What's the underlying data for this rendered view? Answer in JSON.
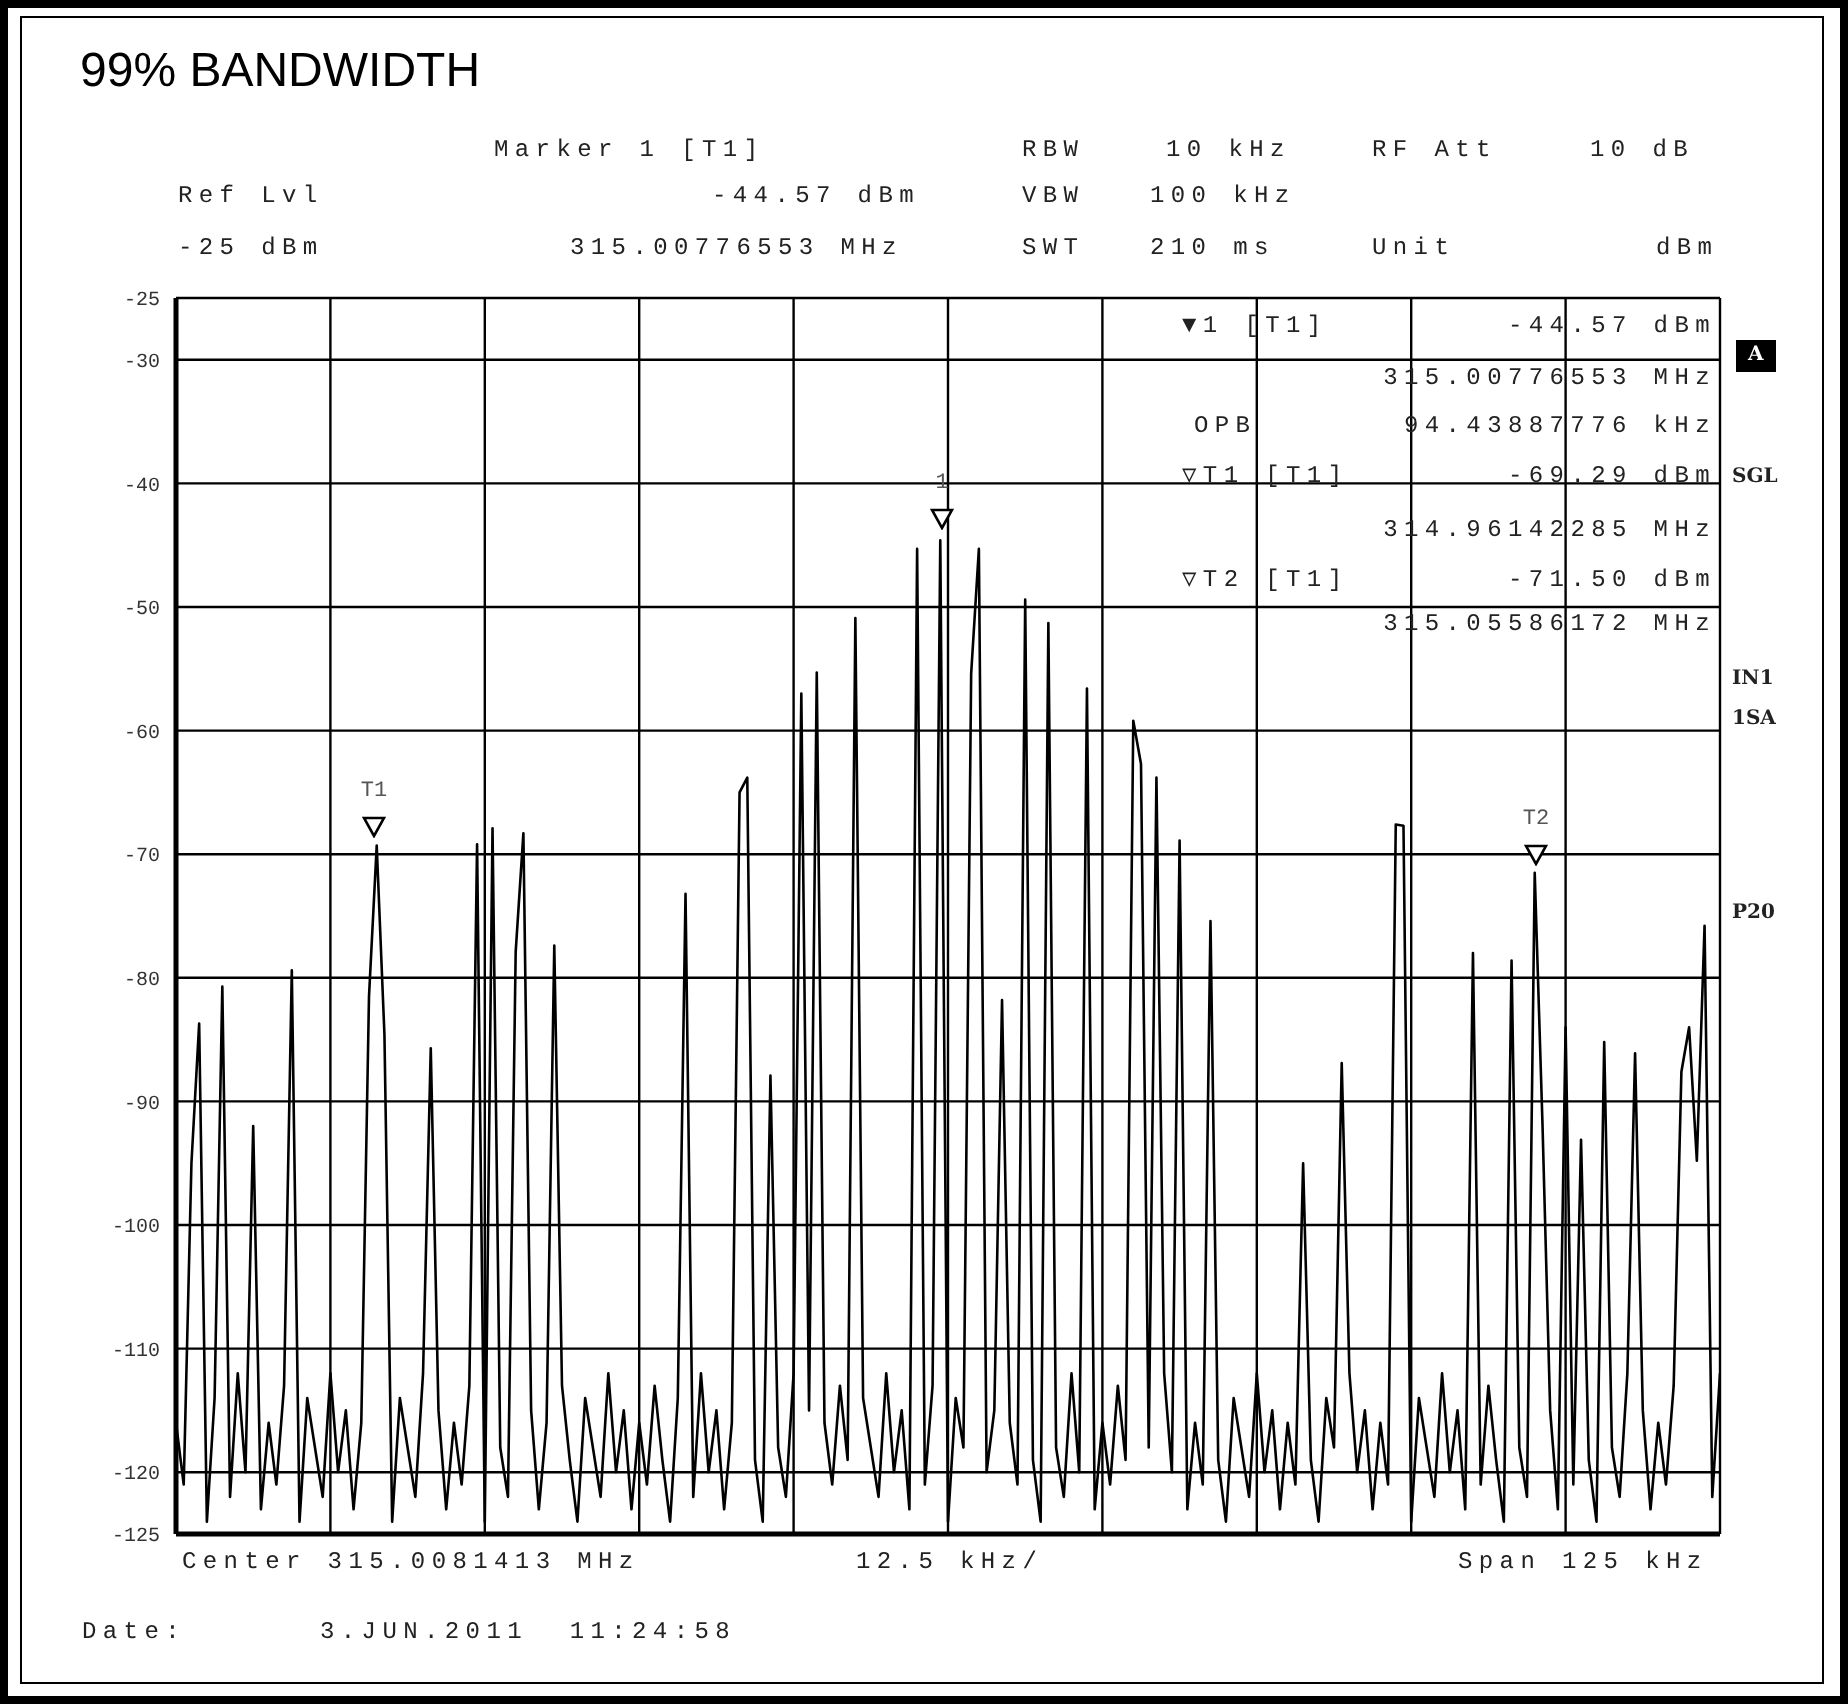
{
  "chart_data": {
    "type": "line",
    "title": "99% BANDWIDTH",
    "categories": [
      null,
      null,
      null,
      null,
      null,
      null,
      null,
      null,
      null,
      null,
      null,
      null,
      null,
      null,
      null,
      null,
      null,
      null,
      null,
      null,
      null,
      null,
      null,
      null,
      null,
      null,
      null,
      null,
      null,
      null,
      null,
      null,
      null,
      null,
      null,
      null,
      null,
      null,
      null,
      null,
      null,
      null,
      null,
      null,
      null,
      null,
      null,
      null,
      null,
      null,
      null,
      null,
      null,
      null,
      null,
      null,
      null,
      null,
      null,
      null,
      null,
      null,
      null,
      null,
      null,
      null,
      null,
      null,
      null,
      null,
      null,
      null,
      null,
      null,
      null,
      null,
      null,
      null,
      null,
      null,
      null,
      null,
      null,
      null,
      null,
      null,
      null,
      null,
      null,
      null,
      null,
      null,
      null,
      null,
      null,
      null,
      null,
      null,
      null,
      null,
      null,
      null,
      null,
      null,
      null,
      null,
      null,
      null,
      null,
      null,
      null,
      null,
      null,
      null,
      null,
      null,
      null,
      null,
      null,
      null,
      null,
      null,
      null,
      null,
      null,
      null,
      null,
      null,
      null,
      null,
      null,
      null,
      null,
      null,
      null,
      null,
      null,
      null,
      null,
      null,
      null,
      null,
      null,
      null,
      null,
      null,
      null,
      null,
      null,
      null,
      null,
      null,
      null,
      null,
      null,
      null,
      null,
      null,
      null,
      null,
      null,
      null,
      null,
      null,
      null,
      null,
      null,
      null,
      null,
      null,
      null,
      null,
      null,
      null,
      null,
      null,
      null,
      null,
      null,
      null,
      null,
      null,
      null,
      null,
      null,
      null,
      null,
      null,
      null,
      null,
      null,
      null,
      null,
      null,
      null,
      null,
      null,
      null,
      null,
      null,
      null
    ],
    "series": [
      {
        "color": "#000000",
        "values": [
          -116,
          -121,
          -95,
          -83.7,
          -124,
          -114,
          -80.7,
          -122,
          -112,
          -120,
          -92,
          -123,
          -116,
          -121,
          -113,
          -79.4,
          -124,
          -114,
          -118,
          -122,
          -112,
          -120,
          -115,
          -123,
          -116,
          -81.5,
          -69.3,
          -84.6,
          -124,
          -114,
          -118,
          -122,
          -112,
          -85.7,
          -115,
          -123,
          -116,
          -121,
          -113,
          -69.2,
          -124,
          -67.9,
          -118,
          -122,
          -77.9,
          -68.3,
          -115,
          -123,
          -116,
          -77.4,
          -113,
          -119,
          -124,
          -114,
          -118,
          -122,
          -112,
          -120,
          -115,
          -123,
          -116,
          -121,
          -113,
          -119,
          -124,
          -114,
          -73.2,
          -122,
          -112,
          -120,
          -115,
          -123,
          -116,
          -65,
          -63.8,
          -119,
          -124,
          -87.9,
          -118,
          -122,
          -112,
          -57,
          -115,
          -55.3,
          -116,
          -121,
          -113,
          -119,
          -50.9,
          -114,
          -118,
          -122,
          -112,
          -120,
          -115,
          -123,
          -45.3,
          -121,
          -113,
          -44.6,
          -124,
          -114,
          -118,
          -55.4,
          -45.3,
          -120,
          -115,
          -81.8,
          -116,
          -121,
          -49.4,
          -119,
          -124,
          -51.3,
          -118,
          -122,
          -112,
          -120,
          -56.6,
          -123,
          -116,
          -121,
          -113,
          -119,
          -59.2,
          -62.7,
          -118,
          -63.8,
          -112,
          -120,
          -68.9,
          -123,
          -116,
          -121,
          -75.4,
          -119,
          -124,
          -114,
          -118,
          -122,
          -112,
          -120,
          -115,
          -123,
          -116,
          -121,
          -95,
          -119,
          -124,
          -114,
          -118,
          -86.9,
          -112,
          -120,
          -115,
          -123,
          -116,
          -121,
          -67.6,
          -67.7,
          -124,
          -114,
          -118,
          -122,
          -112,
          -120,
          -115,
          -123,
          -78,
          -121,
          -113,
          -119,
          -124,
          -78.6,
          -118,
          -122,
          -71.5,
          -91.7,
          -115,
          -123,
          -84,
          -121,
          -93.1,
          -119,
          -124,
          -85.2,
          -118,
          -122,
          -112,
          -86.1,
          -115,
          -123,
          -116,
          -121,
          -113,
          -87.6,
          -84,
          -94.8,
          -75.8,
          -122,
          -112
        ]
      }
    ],
    "ylim": [
      -125,
      -25
    ],
    "yticks": [
      -25,
      -30,
      -40,
      -50,
      -60,
      -70,
      -80,
      -90,
      -100,
      -110,
      -120,
      -125
    ],
    "tick_labels": "y",
    "grid": true,
    "marker": "none",
    "line_style": "solid",
    "annotations": [
      "T1",
      "1",
      "T2",
      "Marker 1 [T1]",
      "RBW",
      "10 kHz",
      "RF Att",
      "10 dB",
      "Ref Lvl",
      "-44.57 dBm",
      "VBW",
      "100 kHz",
      "-25 dBm",
      "315.00776553 MHz",
      "SWT",
      "210 ms",
      "Unit",
      "dBm",
      "▼1 [T1]",
      "-44.57 dBm",
      "315.00776553 MHz",
      "OPB",
      "94.43887776 kHz",
      "▽T1 [T1]",
      "-69.29 dBm",
      "314.96142285 MHz",
      "▽T2 [T1]",
      "-71.50 dBm",
      "315.05586172 MHz",
      "A",
      "SGL",
      "IN1",
      "1SA",
      "P20",
      "Center 315.0081413 MHz",
      "12.5 kHz/",
      "Span 125 kHz",
      "Date:",
      "3.JUN.2011  11:24:58"
    ]
  }
}
